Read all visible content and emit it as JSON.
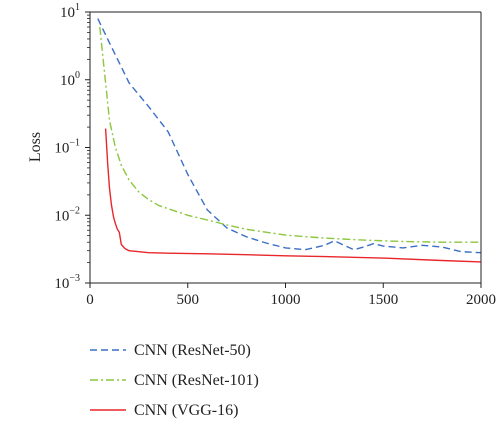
{
  "chart_data": {
    "type": "line",
    "title": "",
    "xlabel": "",
    "ylabel": "Loss",
    "yscale": "log",
    "xlim": [
      0,
      2000
    ],
    "ylim": [
      0.001,
      10
    ],
    "grid": false,
    "legend_position": "bottom",
    "x_ticks": [
      0,
      500,
      1000,
      1500,
      2000
    ],
    "x_tick_labels": [
      "0",
      "500",
      "1000",
      "1500",
      "2000"
    ],
    "y_ticks": [
      10,
      1,
      0.1,
      0.01,
      0.001
    ],
    "y_tick_labels": [
      {
        "base": "10",
        "exp": "1"
      },
      {
        "base": "10",
        "exp": "0"
      },
      {
        "base": "10",
        "exp": "−1"
      },
      {
        "base": "10",
        "exp": "−2"
      },
      {
        "base": "10",
        "exp": "−3"
      }
    ],
    "series": [
      {
        "name": "CNN (ResNet-50)",
        "color": "#3a6fc4",
        "dash": "dashed",
        "x": [
          40,
          100,
          200,
          300,
          400,
          500,
          600,
          700,
          800,
          900,
          1000,
          1100,
          1200,
          1250,
          1300,
          1350,
          1400,
          1450,
          1500,
          1600,
          1700,
          1800,
          1900,
          2000
        ],
        "y": [
          8,
          3.5,
          0.9,
          0.4,
          0.17,
          0.04,
          0.012,
          0.0065,
          0.0048,
          0.0039,
          0.0033,
          0.0031,
          0.0036,
          0.0042,
          0.0036,
          0.0031,
          0.0034,
          0.0038,
          0.0035,
          0.0033,
          0.0036,
          0.0034,
          0.0029,
          0.0028
        ]
      },
      {
        "name": "CNN (ResNet-101)",
        "color": "#8cc63f",
        "dash": "dashdot",
        "x": [
          50,
          80,
          100,
          130,
          160,
          200,
          250,
          300,
          350,
          400,
          500,
          600,
          700,
          800,
          1000,
          1200,
          1400,
          1600,
          1800,
          2000
        ],
        "y": [
          6,
          0.9,
          0.25,
          0.1,
          0.055,
          0.033,
          0.022,
          0.017,
          0.014,
          0.0125,
          0.01,
          0.0085,
          0.0072,
          0.0062,
          0.0051,
          0.0046,
          0.0043,
          0.0041,
          0.004,
          0.004
        ]
      },
      {
        "name": "CNN (VGG-16)",
        "color": "#e8262b",
        "dash": "solid",
        "x": [
          80,
          90,
          100,
          110,
          120,
          130,
          140,
          150,
          160,
          180,
          200,
          250,
          300,
          400,
          600,
          800,
          1000,
          1200,
          1500,
          1800,
          2000
        ],
        "y": [
          0.19,
          0.06,
          0.025,
          0.014,
          0.0095,
          0.0075,
          0.0062,
          0.0056,
          0.0037,
          0.0032,
          0.003,
          0.0029,
          0.0028,
          0.00275,
          0.0027,
          0.00262,
          0.00252,
          0.00245,
          0.00233,
          0.00215,
          0.00205
        ]
      }
    ]
  }
}
